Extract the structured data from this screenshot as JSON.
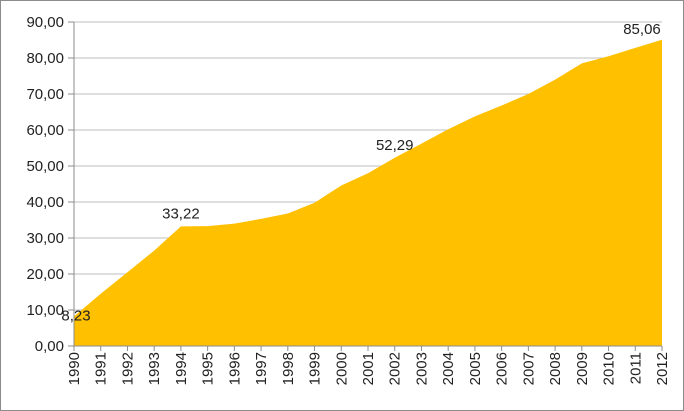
{
  "chart_data": {
    "type": "area",
    "title": "",
    "xlabel": "",
    "ylabel": "",
    "x": [
      "1990",
      "1991",
      "1992",
      "1993",
      "1994",
      "1995",
      "1996",
      "1997",
      "1998",
      "1999",
      "2000",
      "2001",
      "2002",
      "2003",
      "2004",
      "2005",
      "2006",
      "2007",
      "2008",
      "2009",
      "2010",
      "2011",
      "2012"
    ],
    "series": [
      {
        "name": "",
        "color": "#FFC000",
        "values": [
          8.23,
          14.5,
          20.5,
          26.5,
          33.22,
          33.3,
          34.0,
          35.3,
          36.8,
          39.8,
          44.6,
          48.0,
          52.29,
          56.2,
          60.2,
          63.8,
          66.8,
          70.0,
          74.0,
          78.5,
          80.5,
          82.8,
          85.06
        ]
      }
    ],
    "ylim": [
      0,
      90
    ],
    "yticks": [
      "0,00",
      "10,00",
      "20,00",
      "30,00",
      "40,00",
      "50,00",
      "60,00",
      "70,00",
      "80,00",
      "90,00"
    ],
    "grid": true,
    "legend": "none",
    "data_labels": [
      {
        "index": 0,
        "text": "8,23"
      },
      {
        "index": 4,
        "text": "33,22"
      },
      {
        "index": 12,
        "text": "52,29"
      },
      {
        "index": 22,
        "text": "85,06"
      }
    ]
  }
}
